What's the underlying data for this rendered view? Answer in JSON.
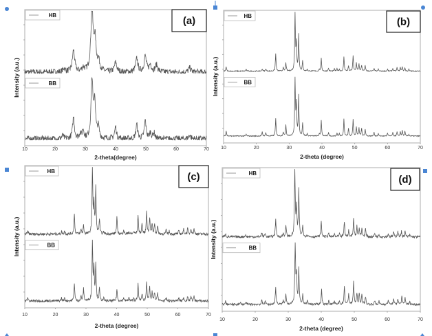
{
  "colors": {
    "trace": "#555555",
    "frame": "#bbbbbb",
    "handle": "#4a86d4"
  },
  "chart_data": [
    {
      "type": "line",
      "panel_label": "(a)",
      "xlabel": "2-theta(degree)",
      "ylabel": "Intensity (a.u.)",
      "xlim": [
        10,
        70
      ],
      "x_ticks": [
        "10",
        "20",
        "30",
        "40",
        "50",
        "60",
        "70"
      ],
      "grid": false,
      "noise": 0.05,
      "series": [
        {
          "name": "HB",
          "peaks": [
            [
              23.0,
              0.06
            ],
            [
              26.1,
              0.36
            ],
            [
              29.3,
              0.07
            ],
            [
              32.2,
              1.0
            ],
            [
              33.2,
              0.5
            ],
            [
              34.4,
              0.16
            ],
            [
              40.0,
              0.16
            ],
            [
              47.0,
              0.22
            ],
            [
              49.8,
              0.26
            ],
            [
              51.5,
              0.12
            ],
            [
              53.5,
              0.12
            ],
            [
              64.5,
              0.07
            ]
          ],
          "peak_width": 0.9
        },
        {
          "name": "BB",
          "peaks": [
            [
              22.5,
              0.05
            ],
            [
              26.1,
              0.36
            ],
            [
              28.3,
              0.08
            ],
            [
              29.3,
              0.14
            ],
            [
              32.2,
              1.0
            ],
            [
              33.1,
              0.62
            ],
            [
              34.3,
              0.18
            ],
            [
              40.0,
              0.2
            ],
            [
              47.0,
              0.24
            ],
            [
              49.8,
              0.3
            ],
            [
              51.5,
              0.1
            ],
            [
              52.7,
              0.1
            ],
            [
              64.5,
              0.07
            ]
          ],
          "peak_width": 0.7
        }
      ]
    },
    {
      "type": "line",
      "panel_label": "(b)",
      "xlabel": "2-theta (degree)",
      "ylabel": "Intensity (a.u.)",
      "xlim": [
        10,
        70
      ],
      "x_ticks": [
        "10",
        "20",
        "30",
        "40",
        "50",
        "60",
        "70"
      ],
      "grid": false,
      "noise": 0.008,
      "series": [
        {
          "name": "HB",
          "peaks": [
            [
              10.8,
              0.07
            ],
            [
              16.9,
              0.03
            ],
            [
              21.8,
              0.04
            ],
            [
              22.9,
              0.04
            ],
            [
              25.9,
              0.3
            ],
            [
              28.2,
              0.06
            ],
            [
              29.0,
              0.15
            ],
            [
              31.8,
              1.0
            ],
            [
              32.2,
              0.45
            ],
            [
              32.9,
              0.63
            ],
            [
              34.1,
              0.17
            ],
            [
              35.5,
              0.03
            ],
            [
              39.2,
              0.03
            ],
            [
              39.8,
              0.22
            ],
            [
              42.0,
              0.05
            ],
            [
              43.8,
              0.04
            ],
            [
              44.6,
              0.04
            ],
            [
              45.3,
              0.03
            ],
            [
              46.7,
              0.25
            ],
            [
              48.1,
              0.09
            ],
            [
              49.5,
              0.27
            ],
            [
              50.5,
              0.14
            ],
            [
              51.3,
              0.13
            ],
            [
              52.1,
              0.1
            ],
            [
              53.2,
              0.1
            ],
            [
              55.9,
              0.05
            ],
            [
              57.2,
              0.03
            ],
            [
              60.0,
              0.03
            ],
            [
              61.6,
              0.05
            ],
            [
              62.9,
              0.06
            ],
            [
              63.9,
              0.06
            ],
            [
              64.5,
              0.07
            ],
            [
              65.3,
              0.06
            ],
            [
              66.5,
              0.03
            ]
          ],
          "peak_width": 0.25
        },
        {
          "name": "BB",
          "peaks": [
            [
              10.8,
              0.09
            ],
            [
              16.9,
              0.03
            ],
            [
              21.8,
              0.07
            ],
            [
              22.9,
              0.06
            ],
            [
              25.9,
              0.3
            ],
            [
              28.2,
              0.07
            ],
            [
              29.0,
              0.2
            ],
            [
              31.8,
              1.0
            ],
            [
              32.2,
              0.52
            ],
            [
              32.9,
              0.7
            ],
            [
              34.1,
              0.22
            ],
            [
              35.5,
              0.04
            ],
            [
              39.2,
              0.03
            ],
            [
              39.8,
              0.27
            ],
            [
              42.0,
              0.06
            ],
            [
              44.6,
              0.05
            ],
            [
              45.3,
              0.04
            ],
            [
              46.7,
              0.3
            ],
            [
              48.1,
              0.13
            ],
            [
              49.5,
              0.28
            ],
            [
              50.5,
              0.16
            ],
            [
              51.3,
              0.14
            ],
            [
              52.1,
              0.13
            ],
            [
              53.2,
              0.12
            ],
            [
              55.9,
              0.06
            ],
            [
              57.2,
              0.04
            ],
            [
              60.0,
              0.05
            ],
            [
              61.6,
              0.06
            ],
            [
              62.9,
              0.07
            ],
            [
              63.9,
              0.07
            ],
            [
              64.5,
              0.09
            ],
            [
              65.3,
              0.08
            ],
            [
              66.5,
              0.03
            ]
          ],
          "peak_width": 0.25
        }
      ]
    },
    {
      "type": "line",
      "panel_label": "(c)",
      "xlabel": "2-theta (degree)",
      "ylabel": "Intensity (a.u.)",
      "xlim": [
        10,
        70
      ],
      "x_ticks": [
        "10",
        "20",
        "30",
        "40",
        "50",
        "60",
        "70"
      ],
      "grid": false,
      "noise": 0.02,
      "series": [
        {
          "name": "HB",
          "peaks": [
            [
              11.0,
              0.04
            ],
            [
              22.0,
              0.04
            ],
            [
              23.0,
              0.05
            ],
            [
              26.2,
              0.3
            ],
            [
              28.4,
              0.07
            ],
            [
              29.2,
              0.13
            ],
            [
              32.1,
              1.0
            ],
            [
              32.6,
              0.45
            ],
            [
              33.2,
              0.7
            ],
            [
              34.4,
              0.22
            ],
            [
              35.8,
              0.03
            ],
            [
              40.1,
              0.25
            ],
            [
              42.3,
              0.07
            ],
            [
              44.0,
              0.04
            ],
            [
              45.6,
              0.04
            ],
            [
              47.0,
              0.3
            ],
            [
              48.3,
              0.16
            ],
            [
              49.8,
              0.35
            ],
            [
              50.8,
              0.25
            ],
            [
              51.6,
              0.15
            ],
            [
              52.4,
              0.16
            ],
            [
              53.4,
              0.12
            ],
            [
              56.2,
              0.06
            ],
            [
              57.2,
              0.04
            ],
            [
              60.3,
              0.05
            ],
            [
              61.9,
              0.07
            ],
            [
              63.2,
              0.08
            ],
            [
              64.3,
              0.09
            ],
            [
              65.3,
              0.08
            ]
          ],
          "peak_width": 0.3
        },
        {
          "name": "BB",
          "peaks": [
            [
              11.0,
              0.06
            ],
            [
              22.0,
              0.05
            ],
            [
              23.0,
              0.05
            ],
            [
              26.2,
              0.3
            ],
            [
              28.4,
              0.08
            ],
            [
              29.2,
              0.2
            ],
            [
              32.1,
              1.0
            ],
            [
              32.6,
              0.52
            ],
            [
              33.2,
              0.62
            ],
            [
              34.4,
              0.2
            ],
            [
              35.8,
              0.04
            ],
            [
              40.1,
              0.2
            ],
            [
              42.3,
              0.06
            ],
            [
              44.0,
              0.06
            ],
            [
              45.6,
              0.05
            ],
            [
              47.0,
              0.28
            ],
            [
              48.3,
              0.12
            ],
            [
              49.8,
              0.33
            ],
            [
              50.8,
              0.22
            ],
            [
              51.6,
              0.14
            ],
            [
              52.4,
              0.14
            ],
            [
              53.4,
              0.14
            ],
            [
              56.2,
              0.05
            ],
            [
              60.3,
              0.05
            ],
            [
              61.9,
              0.06
            ],
            [
              63.2,
              0.07
            ],
            [
              64.3,
              0.09
            ],
            [
              65.3,
              0.07
            ]
          ],
          "peak_width": 0.3
        }
      ]
    },
    {
      "type": "line",
      "panel_label": "(d)",
      "xlabel": "2-theta (degree)",
      "ylabel": "Intensity (a.u.)",
      "xlim": [
        10,
        70
      ],
      "x_ticks": [
        "10",
        "20",
        "30",
        "40",
        "50",
        "60",
        "70"
      ],
      "grid": false,
      "noise": 0.018,
      "series": [
        {
          "name": "HB",
          "peaks": [
            [
              11.0,
              0.05
            ],
            [
              17.0,
              0.03
            ],
            [
              22.0,
              0.06
            ],
            [
              23.0,
              0.05
            ],
            [
              26.2,
              0.28
            ],
            [
              28.5,
              0.05
            ],
            [
              29.3,
              0.17
            ],
            [
              32.0,
              1.0
            ],
            [
              32.5,
              0.42
            ],
            [
              33.2,
              0.7
            ],
            [
              34.4,
              0.17
            ],
            [
              35.8,
              0.03
            ],
            [
              40.0,
              0.22
            ],
            [
              42.2,
              0.06
            ],
            [
              44.0,
              0.04
            ],
            [
              45.5,
              0.04
            ],
            [
              47.0,
              0.23
            ],
            [
              48.3,
              0.1
            ],
            [
              49.8,
              0.28
            ],
            [
              50.8,
              0.16
            ],
            [
              51.5,
              0.13
            ],
            [
              52.3,
              0.13
            ],
            [
              53.4,
              0.12
            ],
            [
              56.2,
              0.05
            ],
            [
              57.5,
              0.04
            ],
            [
              60.3,
              0.05
            ],
            [
              61.9,
              0.07
            ],
            [
              63.2,
              0.09
            ],
            [
              64.3,
              0.08
            ],
            [
              65.4,
              0.08
            ],
            [
              66.8,
              0.03
            ]
          ],
          "peak_width": 0.28
        },
        {
          "name": "BB",
          "peaks": [
            [
              11.0,
              0.05
            ],
            [
              15.6,
              0.03
            ],
            [
              17.2,
              0.03
            ],
            [
              22.0,
              0.06
            ],
            [
              23.0,
              0.06
            ],
            [
              26.2,
              0.28
            ],
            [
              28.5,
              0.06
            ],
            [
              29.3,
              0.18
            ],
            [
              32.1,
              1.0
            ],
            [
              32.5,
              0.45
            ],
            [
              33.2,
              0.58
            ],
            [
              34.4,
              0.15
            ],
            [
              35.8,
              0.06
            ],
            [
              40.1,
              0.24
            ],
            [
              42.3,
              0.07
            ],
            [
              44.0,
              0.05
            ],
            [
              45.5,
              0.05
            ],
            [
              47.0,
              0.3
            ],
            [
              48.3,
              0.18
            ],
            [
              49.8,
              0.38
            ],
            [
              50.8,
              0.18
            ],
            [
              51.5,
              0.17
            ],
            [
              52.3,
              0.18
            ],
            [
              53.4,
              0.13
            ],
            [
              56.2,
              0.06
            ],
            [
              57.5,
              0.05
            ],
            [
              60.3,
              0.08
            ],
            [
              61.9,
              0.09
            ],
            [
              63.2,
              0.1
            ],
            [
              64.4,
              0.13
            ],
            [
              65.4,
              0.11
            ],
            [
              66.8,
              0.04
            ]
          ],
          "peak_width": 0.28
        }
      ]
    }
  ]
}
